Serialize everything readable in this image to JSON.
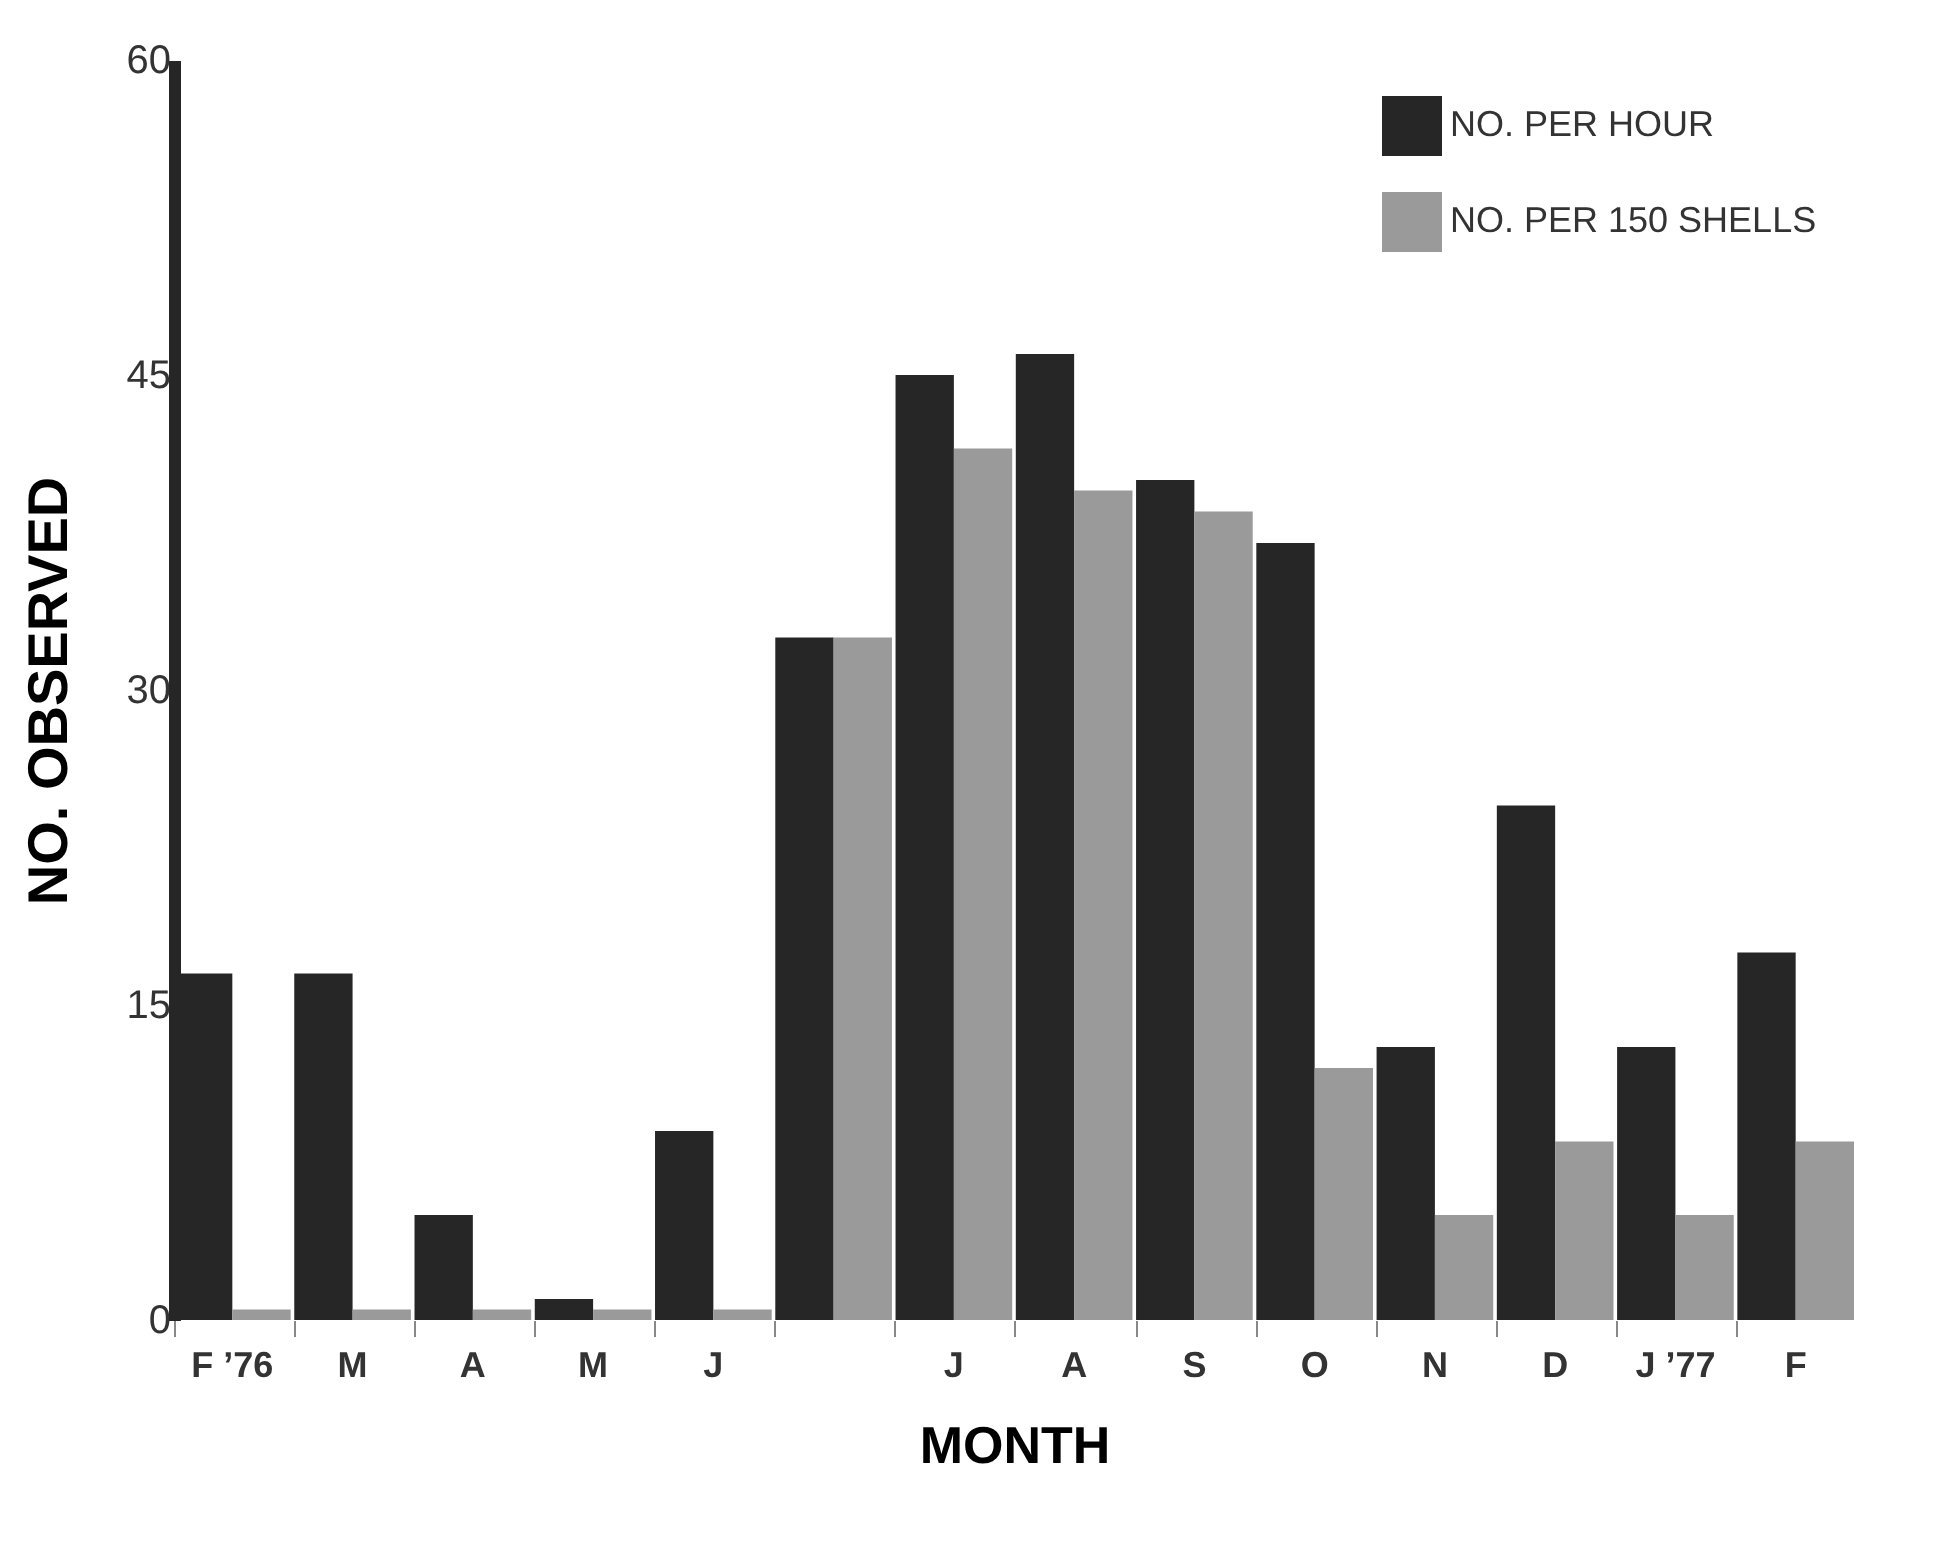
{
  "chart_data": {
    "type": "bar",
    "xlabel": "MONTH",
    "ylabel": "NO.   OBSERVED",
    "categories": [
      "F\n’76",
      "M",
      "A",
      "M",
      "J",
      null,
      "J",
      "A",
      "S",
      "O",
      "N",
      "D",
      "J\n’77",
      "F"
    ],
    "series": [
      {
        "name": "NO. PER HOUR",
        "color": "#262626",
        "values": [
          16.5,
          16.5,
          5,
          1,
          9,
          32.5,
          45,
          46,
          40,
          37,
          13,
          24.5,
          13,
          17.5
        ]
      },
      {
        "name": "NO. PER 150 SHELLS",
        "color": "#9a9a9a",
        "values": [
          0.5,
          0.5,
          0.5,
          0.5,
          0.5,
          32.5,
          41.5,
          39.5,
          38.5,
          12,
          5,
          8.5,
          5,
          8.5
        ]
      }
    ],
    "ylim": [
      0,
      60
    ],
    "yticks": [
      0,
      15,
      30,
      45,
      60
    ],
    "grid": false,
    "legend": "top right"
  }
}
